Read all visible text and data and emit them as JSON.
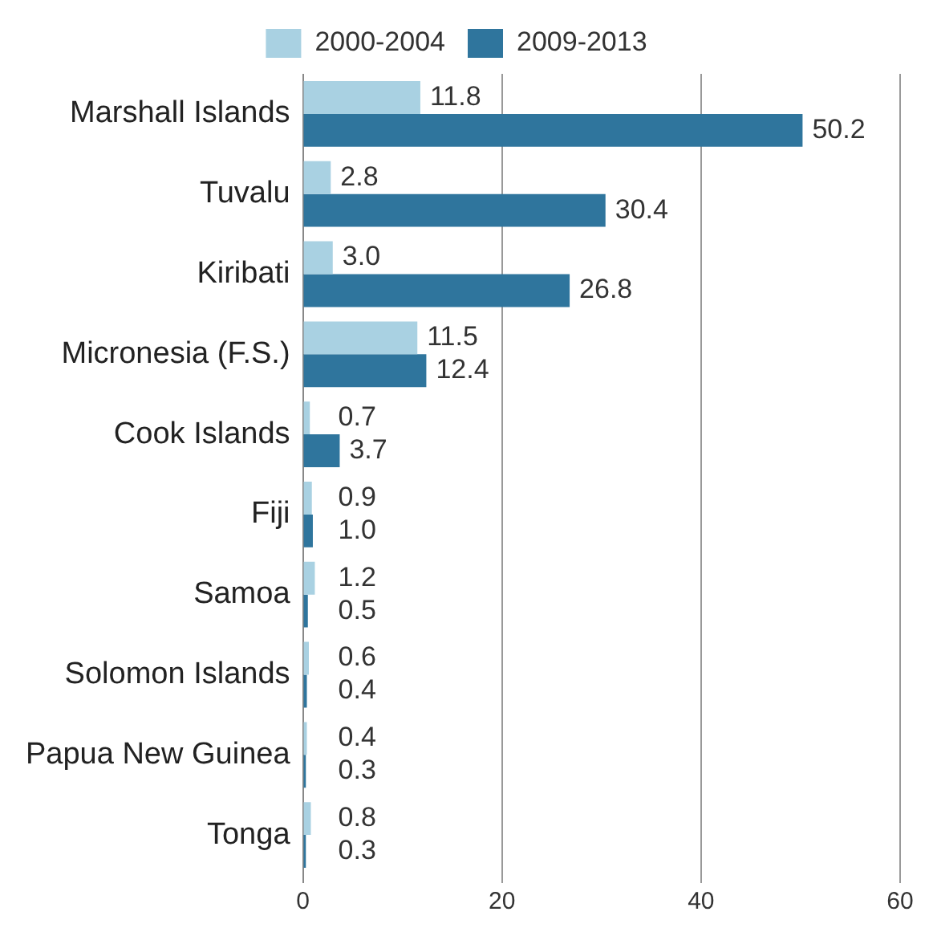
{
  "chart_data": {
    "type": "bar",
    "orientation": "horizontal",
    "categories": [
      "Marshall Islands",
      "Tuvalu",
      "Kiribati",
      "Micronesia (F.S.)",
      "Cook Islands",
      "Fiji",
      "Samoa",
      "Solomon Islands",
      "Papua New Guinea",
      "Tonga"
    ],
    "series": [
      {
        "name": "2000-2004",
        "color": "#a9d1e2",
        "values": [
          11.8,
          2.8,
          3.0,
          11.5,
          0.7,
          0.9,
          1.2,
          0.6,
          0.4,
          0.8
        ],
        "value_labels": [
          "11.8",
          "2.8",
          "3.0",
          "11.5",
          "0.7",
          "0.9",
          "1.2",
          "0.6",
          "0.4",
          "0.8"
        ]
      },
      {
        "name": "2009-2013",
        "color": "#2f759d",
        "values": [
          50.2,
          30.4,
          26.8,
          12.4,
          3.7,
          1.0,
          0.5,
          0.4,
          0.3,
          0.3
        ],
        "value_labels": [
          "50.2",
          "30.4",
          "26.8",
          "12.4",
          "3.7",
          "1.0",
          "0.5",
          "0.4",
          "0.3",
          "0.3"
        ]
      }
    ],
    "xlim": [
      0,
      60
    ],
    "xticks": [
      0,
      20,
      40,
      60
    ],
    "grid": "x",
    "legend": "top"
  }
}
